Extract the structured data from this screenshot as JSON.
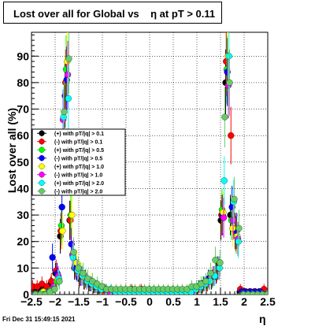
{
  "header": {
    "title": "Lost over all for Global vs    η at pT > 0.11"
  },
  "footer": {
    "timestamp": "Fri Dec 31 15:49:15 2021"
  },
  "chart_data": {
    "type": "scatter",
    "title": "Lost over all for Global vs    η at pT > 0.11",
    "xlabel": "η",
    "ylabel": "Lost over all (%)",
    "xlim": [
      -2.5,
      2.5
    ],
    "ylim": [
      0,
      99
    ],
    "grid": true,
    "legend_position": "center-left",
    "xticks": [
      "−2.5",
      "−2",
      "−1.5",
      "−1",
      "−0.5",
      "0",
      "0.5",
      "1",
      "1.5",
      "2",
      "2.5"
    ],
    "xtick_values": [
      -2.5,
      -2,
      -1.5,
      -1,
      -0.5,
      0,
      0.5,
      1,
      1.5,
      2,
      2.5
    ],
    "yticks": [
      "0",
      "10",
      "20",
      "30",
      "40",
      "50",
      "60",
      "70",
      "80",
      "90"
    ],
    "ytick_values": [
      0,
      10,
      20,
      30,
      40,
      50,
      60,
      70,
      80,
      90
    ],
    "x": [
      -2.45,
      -2.35,
      -2.25,
      -2.15,
      -2.05,
      -1.95,
      -1.85,
      -1.75,
      -1.65,
      -1.55,
      -1.45,
      -1.35,
      -1.25,
      -1.15,
      -1.05,
      -0.95,
      -0.85,
      -0.75,
      -0.65,
      -0.55,
      -0.45,
      -0.35,
      -0.25,
      -0.15,
      -0.05,
      0.05,
      0.15,
      0.25,
      0.35,
      0.45,
      0.55,
      0.65,
      0.75,
      0.85,
      0.95,
      1.05,
      1.15,
      1.25,
      1.35,
      1.45,
      1.55,
      1.65,
      1.75,
      1.85,
      1.95,
      2.05,
      2.15,
      2.25,
      2.35,
      2.45
    ],
    "series": [
      {
        "name": "(+) with pT/|q| > 0.1",
        "color": "#000000",
        "values": [
          1,
          1,
          2,
          2,
          4,
          8,
          22,
          75,
          28,
          10,
          6,
          5,
          4,
          3,
          2,
          1,
          1,
          1,
          1,
          1,
          1,
          1,
          1,
          1,
          1,
          1,
          1,
          1,
          1,
          1,
          1,
          1,
          1,
          1,
          2,
          2,
          3,
          4,
          5,
          8,
          28,
          80,
          30,
          24,
          1,
          1,
          1,
          1,
          1,
          1
        ]
      },
      {
        "name": "(-) with pT/|q| > 0.1",
        "color": "#ff0000",
        "values": [
          3,
          3,
          4,
          3,
          5,
          9,
          24,
          80,
          28,
          11,
          7,
          5,
          4,
          3,
          2,
          1,
          1,
          1,
          1,
          1,
          1,
          2,
          1,
          2,
          1,
          1,
          1,
          1,
          1,
          1,
          1,
          1,
          1,
          1,
          2,
          2,
          3,
          4,
          6,
          9,
          30,
          88,
          60,
          23,
          2,
          1,
          1,
          1,
          1,
          2
        ]
      },
      {
        "name": "(+) with pT/|q| > 0.5",
        "color": "#00ff00",
        "values": [
          0,
          0,
          1,
          1,
          2,
          5,
          26,
          85,
          30,
          12,
          8,
          6,
          4,
          3,
          2,
          2,
          1,
          1,
          1,
          1,
          1,
          1,
          1,
          1,
          1,
          1,
          1,
          1,
          1,
          1,
          1,
          1,
          1,
          1,
          2,
          3,
          4,
          5,
          6,
          10,
          32,
          85,
          28,
          22,
          0,
          0,
          0,
          0,
          0,
          0
        ]
      },
      {
        "name": "(-) with pT/|q| > 0.5",
        "color": "#0000ff",
        "values": [
          0,
          0,
          0,
          1,
          14,
          8,
          33,
          81,
          19,
          10,
          7,
          6,
          4,
          3,
          2,
          2,
          1,
          1,
          1,
          1,
          1,
          1,
          1,
          1,
          1,
          1,
          1,
          1,
          1,
          1,
          1,
          1,
          1,
          1,
          2,
          3,
          4,
          6,
          7,
          10,
          30,
          84,
          33,
          24,
          1,
          1,
          1,
          1,
          1,
          0
        ]
      },
      {
        "name": "(+) with pT/|q| > 1.0",
        "color": "#ffff00",
        "values": [
          0,
          0,
          1,
          1,
          2,
          6,
          24,
          88,
          30,
          12,
          8,
          6,
          5,
          3,
          2,
          2,
          1,
          1,
          1,
          1,
          1,
          1,
          1,
          1,
          1,
          1,
          1,
          1,
          1,
          1,
          1,
          1,
          1,
          1,
          2,
          3,
          4,
          5,
          7,
          10,
          31,
          90,
          25,
          22,
          0,
          0,
          0,
          0,
          0,
          0
        ]
      },
      {
        "name": "(-) with pT/|q| > 1.0",
        "color": "#ff00ff",
        "values": [
          0,
          0,
          0,
          1,
          3,
          7,
          66,
          83,
          15,
          9,
          7,
          5,
          4,
          3,
          2,
          2,
          1,
          1,
          1,
          1,
          1,
          1,
          1,
          1,
          1,
          1,
          1,
          1,
          1,
          1,
          1,
          1,
          1,
          1,
          2,
          3,
          4,
          5,
          7,
          10,
          29,
          79,
          28,
          21,
          0,
          0,
          0,
          0,
          0,
          0
        ]
      },
      {
        "name": "(+) with pT/|q| > 2.0",
        "color": "#00ffff",
        "values": [
          0,
          0,
          0,
          1,
          2,
          6,
          67,
          74,
          14,
          9,
          7,
          5,
          4,
          3,
          2,
          2,
          2,
          1,
          1,
          1,
          1,
          1,
          1,
          1,
          1,
          1,
          1,
          1,
          1,
          1,
          1,
          1,
          1,
          1,
          2,
          3,
          4,
          5,
          7,
          10,
          43,
          90,
          35,
          20,
          0,
          0,
          0,
          0,
          0,
          0
        ]
      },
      {
        "name": "(-) with pT/|q| > 2.0",
        "color": "#66cc66",
        "values": [
          0,
          0,
          0,
          1,
          2,
          5,
          69,
          89,
          16,
          10,
          8,
          6,
          5,
          4,
          3,
          2,
          2,
          2,
          2,
          2,
          2,
          2,
          2,
          2,
          2,
          2,
          2,
          2,
          2,
          2,
          2,
          2,
          2,
          3,
          3,
          4,
          5,
          8,
          13,
          12,
          67,
          80,
          36,
          25,
          0,
          0,
          0,
          0,
          0,
          0
        ]
      }
    ]
  }
}
